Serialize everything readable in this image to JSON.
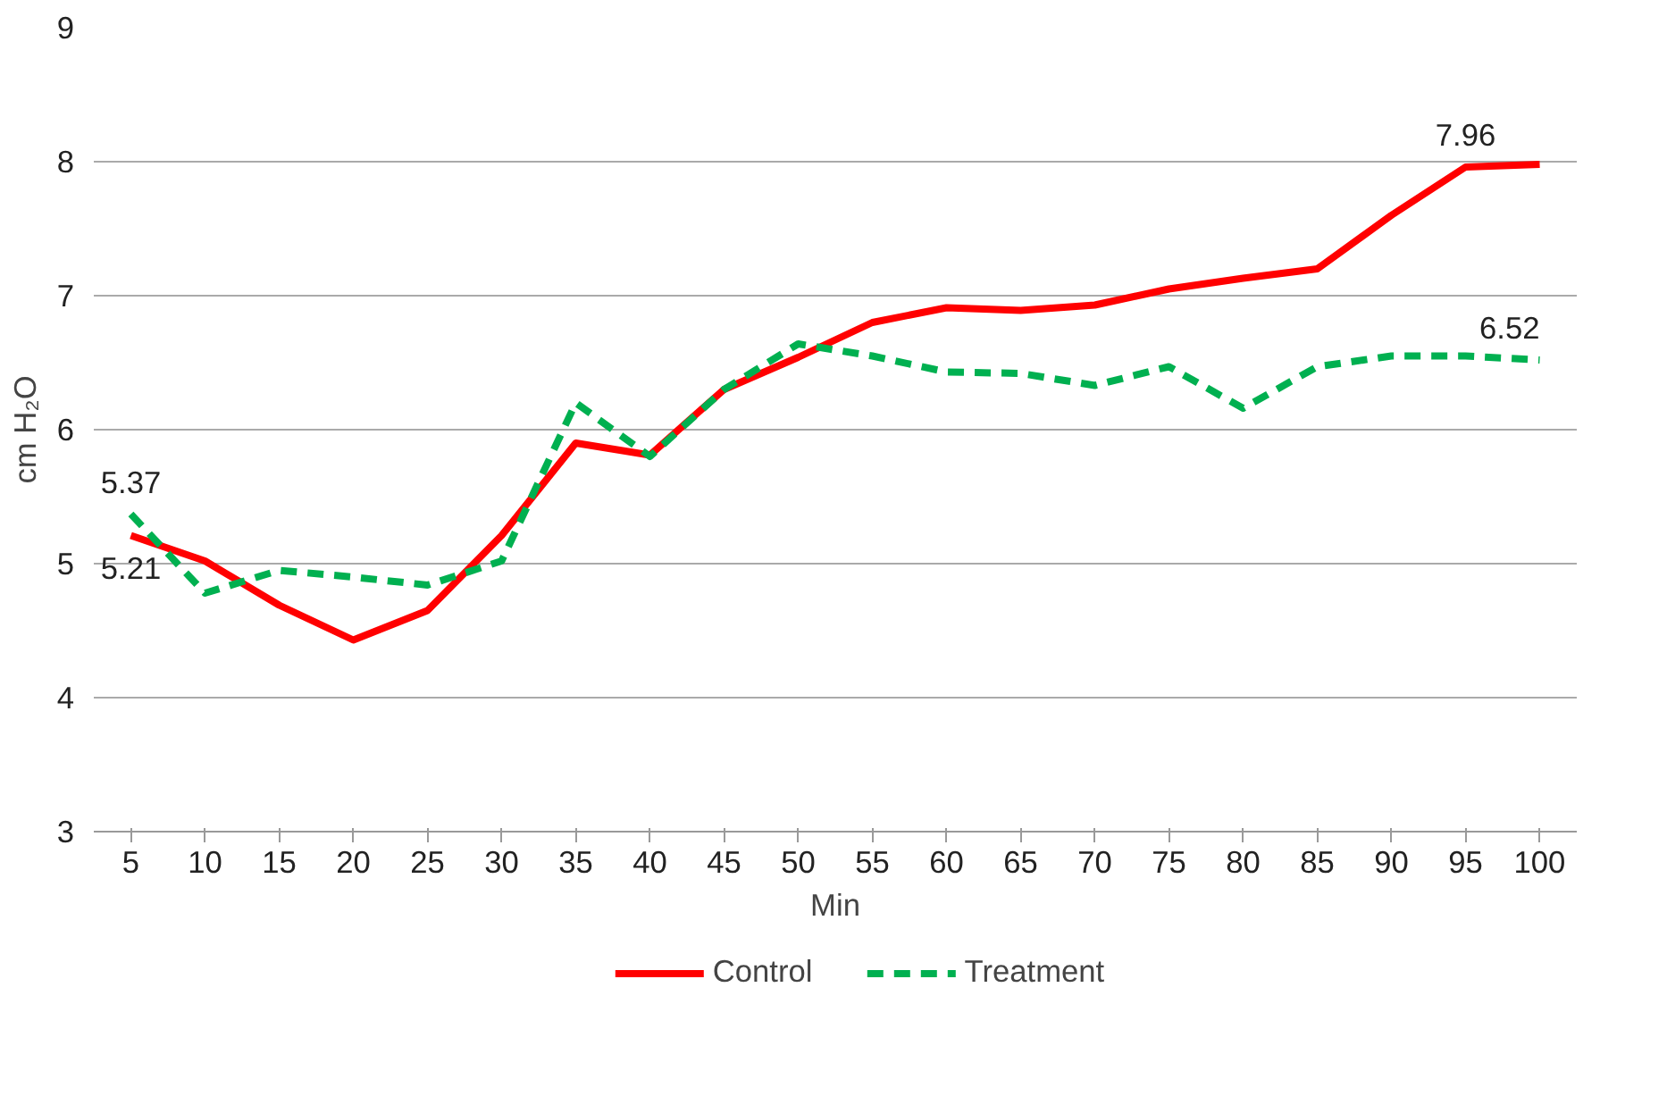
{
  "chart_data": {
    "type": "line",
    "xlabel": "Min",
    "ylabel": "cm H₂O",
    "categories": [
      "5",
      "10",
      "15",
      "20",
      "25",
      "30",
      "35",
      "40",
      "45",
      "50",
      "55",
      "60",
      "65",
      "70",
      "75",
      "80",
      "85",
      "90",
      "95",
      "100"
    ],
    "series": [
      {
        "name": "Control",
        "color": "#ff0000",
        "line_style": "solid",
        "values": [
          5.21,
          5.02,
          4.69,
          4.43,
          4.65,
          5.21,
          5.9,
          5.81,
          6.3,
          6.54,
          6.8,
          6.91,
          6.89,
          6.93,
          7.05,
          7.13,
          7.2,
          7.6,
          7.96,
          7.98
        ]
      },
      {
        "name": "Treatment",
        "color": "#00b050",
        "line_style": "dashed",
        "values": [
          5.37,
          4.78,
          4.95,
          4.9,
          4.84,
          5.02,
          6.2,
          5.8,
          6.3,
          6.64,
          6.55,
          6.43,
          6.42,
          6.33,
          6.47,
          6.16,
          6.47,
          6.55,
          6.55,
          6.52
        ]
      }
    ],
    "ylim": [
      3,
      9
    ],
    "yticks": [
      3,
      4,
      5,
      6,
      7,
      8,
      9
    ],
    "grid": "y",
    "legend": "bottom",
    "marker": "none",
    "annotations": [
      {
        "text": "5.37",
        "x": "5",
        "y": 5.37
      },
      {
        "text": "5.21",
        "x": "5",
        "y": 5.21
      },
      {
        "text": "7.96",
        "x": "95",
        "y": 7.96
      },
      {
        "text": "6.52",
        "x": "100",
        "y": 6.52
      }
    ]
  }
}
